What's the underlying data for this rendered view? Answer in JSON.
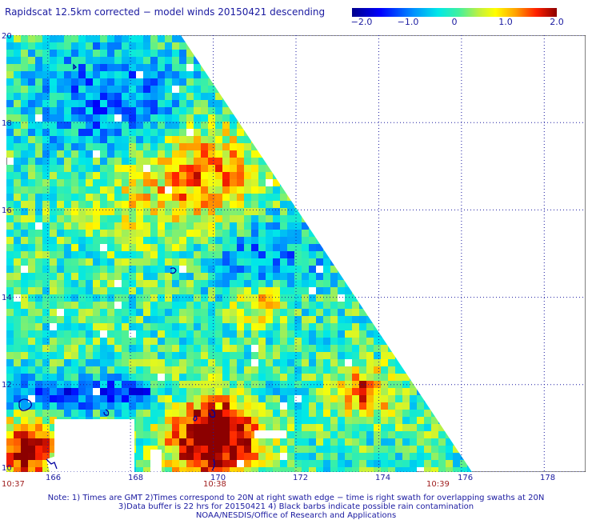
{
  "title": "Rapidscat 12.5km corrected − model winds 20150421 descending",
  "colorbar": {
    "ticks": [
      "−2.0",
      "−1.0",
      "0",
      "1.0",
      "2.0"
    ],
    "min": -2.0,
    "max": 2.0
  },
  "chart_data": {
    "type": "heatmap",
    "x_ticks": [
      "166",
      "168",
      "170",
      "172",
      "174",
      "176",
      "178"
    ],
    "y_ticks": [
      "20",
      "18",
      "16",
      "14",
      "12",
      "10"
    ],
    "x_range": [
      165,
      179
    ],
    "y_range": [
      10,
      20
    ],
    "grid": "dotted",
    "value_range": [
      -2.0,
      2.0
    ]
  },
  "time_labels": [
    "10:37",
    "10:38",
    "10:39"
  ],
  "notes": [
    "Note: 1) Times are GMT 2)Times correspond to 20N at right swath edge − time is right swath for overlapping swaths at 20N",
    "3)Data buffer is 22 hrs for 20150421 4) Black barbs indicate possible rain contamination",
    "NOAA/NESDIS/Office of Research and Applications"
  ]
}
